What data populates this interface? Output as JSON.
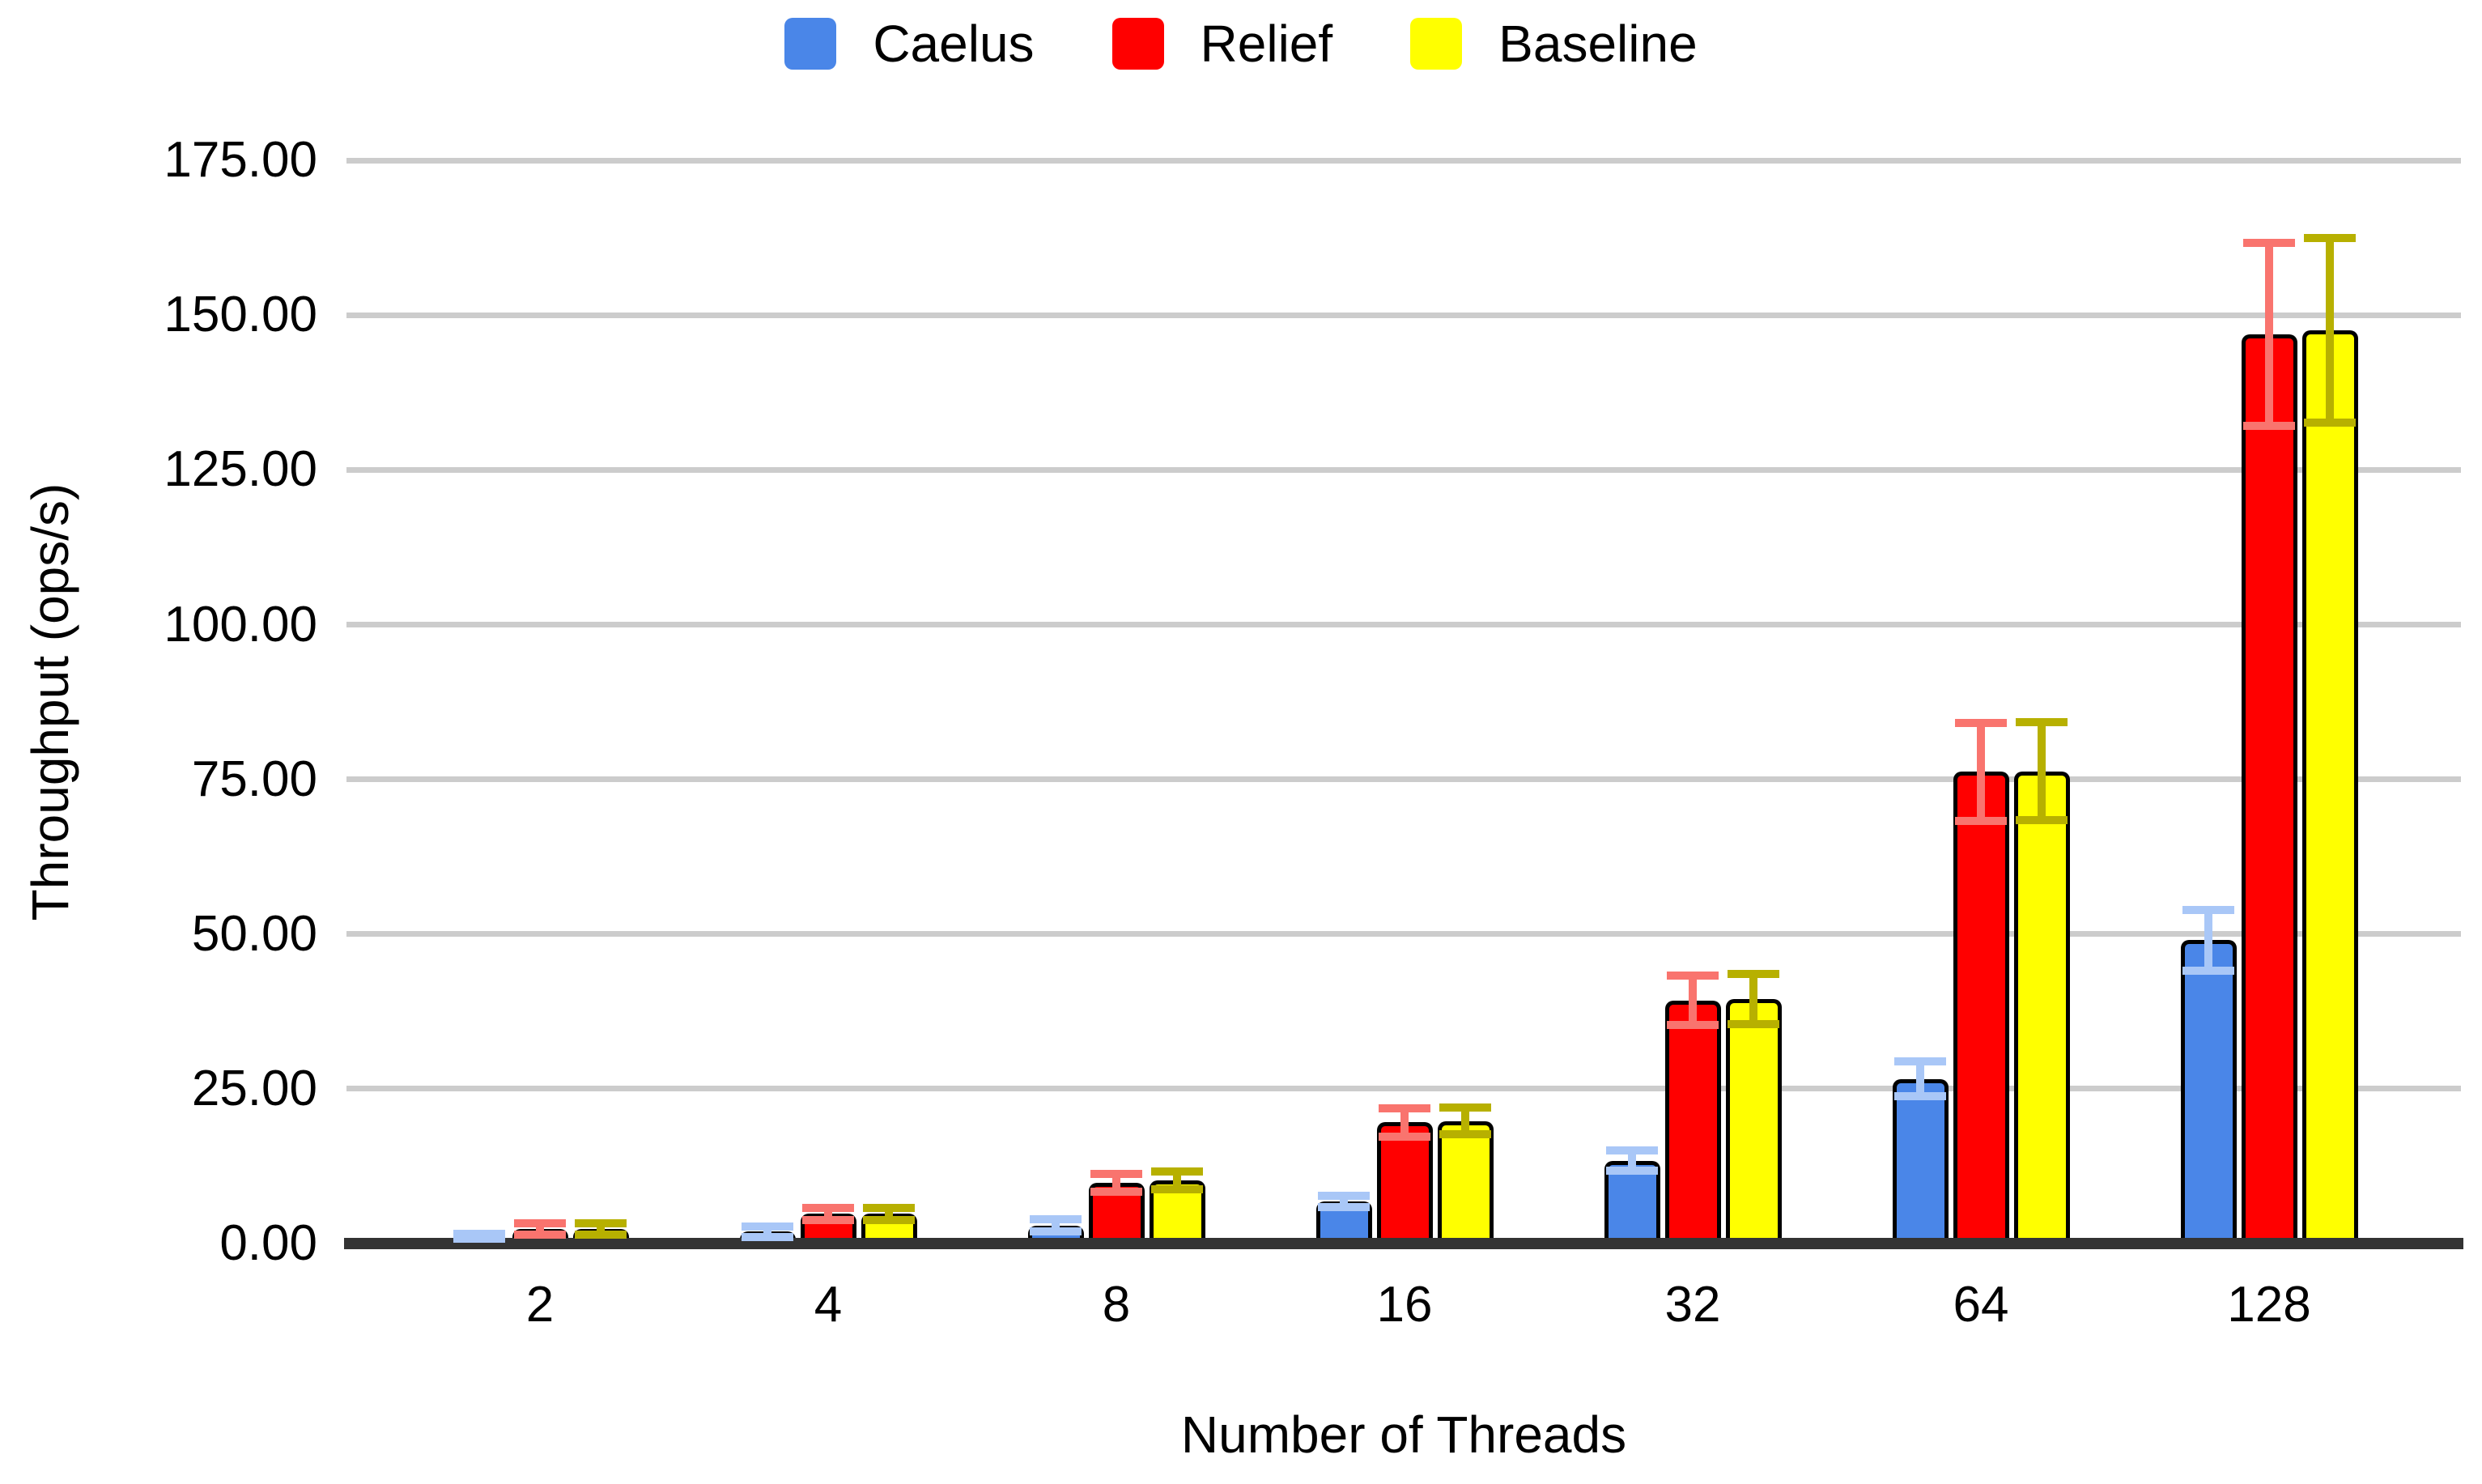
{
  "chart_data": {
    "type": "bar",
    "title": "",
    "xlabel": "Number of Threads",
    "ylabel": "Throughput (ops/s)",
    "categories": [
      "2",
      "4",
      "8",
      "16",
      "32",
      "64",
      "128"
    ],
    "series": [
      {
        "name": "Caelus",
        "color": "#4a86e8",
        "error_color": "#a9c7f7",
        "values": [
          1.2,
          1.9,
          2.9,
          6.8,
          13.4,
          26.6,
          49.0
        ],
        "errors": [
          0.4,
          0.8,
          1.0,
          0.9,
          1.6,
          2.8,
          4.9
        ]
      },
      {
        "name": "Relief",
        "color": "#ff0000",
        "error_color": "#f9746e",
        "values": [
          2.4,
          4.8,
          9.8,
          19.6,
          39.3,
          76.2,
          146.9
        ],
        "errors": [
          0.9,
          1.0,
          1.4,
          2.3,
          4.0,
          7.9,
          14.8
        ]
      },
      {
        "name": "Baseline",
        "color": "#ffff00",
        "error_color": "#b7b000",
        "values": [
          2.4,
          4.8,
          10.2,
          19.8,
          39.5,
          76.3,
          147.5
        ],
        "errors": [
          0.9,
          1.0,
          1.4,
          2.2,
          4.0,
          7.9,
          14.9
        ]
      }
    ],
    "ylim": [
      0,
      175
    ],
    "ytick_step": 25,
    "ytick_decimals": 2,
    "grid": true,
    "legend_position": "top",
    "error_bars": true,
    "colors": {
      "grid": "#cccccc",
      "axis_baseline": "#333333",
      "text": "#000000",
      "background": "#ffffff"
    }
  }
}
